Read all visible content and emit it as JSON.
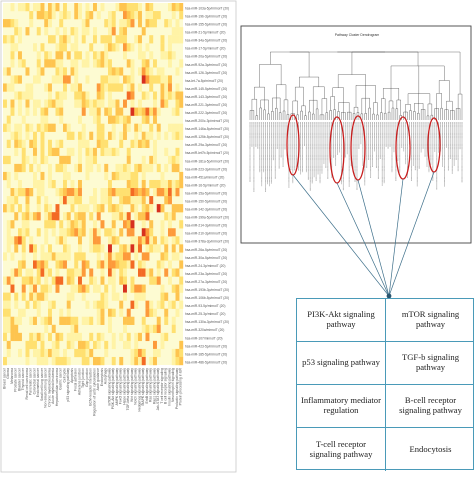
{
  "heatmap": {
    "row_labels": [
      "hsa-miR-103a-5p/mirnoiT (20)",
      "hsa-miR-19b-3p/mirnoiT (20)",
      "hsa-miR-155-5p/mirnoiT (20)",
      "hsa-miR-21-5p/mirnoiT (20)",
      "hsa-miR-34a-5p/mirnoiT (20)",
      "hsa-miR-17-5p/mirnoiT (20)",
      "hsa-miR-20a-5p/mirnoiT (20)",
      "hsa-miR-92a-3p/mirnoiT (20)",
      "hsa-miR-126-3p/mirnoiT (20)",
      "hsa-let-7a-5p/mirnoiT (20)",
      "hsa-miR-145-5p/mirnoiT (20)",
      "hsa-miR-143-3p/mirnoiT (20)",
      "hsa-miR-221-3p/mirnoiT (20)",
      "hsa-miR-222-3p/mirnoiT (20)",
      "hsa-miR-200c-3p/mirnoiT (20)",
      "hsa-miR-146a-5p/mirnoiT (20)",
      "hsa-miR-125b-5p/mirnoiT (20)",
      "hsa-miR-29a-3p/mirnoiT (20)",
      "hsa-miR-let7b-5p/mirnoiT (20)",
      "hsa-miR-181a-5p/mirnoiT (20)",
      "hsa-miR-223-3p/mirnoiT (20)",
      "hsa-miR-451a/mirnoiT (20)",
      "hsa-miR-16-5p/mirnoiT (20)",
      "hsa-miR-15a-5p/mirnoiT (20)",
      "hsa-miR-150-5p/mirnoiT (20)",
      "hsa-miR-142-3p/mirnoiT (20)",
      "hsa-miR-199a-5p/mirnoiT (20)",
      "hsa-miR-214-3p/mirnoiT (20)",
      "hsa-miR-210-3p/mirnoiT (20)",
      "hsa-miR-378a-3p/mirnoiT (20)",
      "hsa-miR-26a-5p/mirnoiT (20)",
      "hsa-miR-30a-5p/mirnoiT (20)",
      "hsa-miR-24-3p/mirnoiT (20)",
      "hsa-miR-23a-3p/mirnoiT (20)",
      "hsa-miR-27a-3p/mirnoiT (20)",
      "hsa-miR-193b-3p/mirnoiT (20)",
      "hsa-miR-106b-5p/mirnoiT (20)",
      "hsa-miR-93-5p/mirnoiT (20)",
      "hsa-miR-25-3p/mirnoiT (20)",
      "hsa-miR-130a-3p/mirnoiT (20)",
      "hsa-miR-320a/mirnoiT (20)",
      "hsa-miR-107/mirnoiT (20)",
      "hsa-miR-423-5p/mirnoiT (20)",
      "hsa-miR-185-5p/mirnoiT (20)",
      "hsa-miR-486-5p/mirnoiT (20)"
    ],
    "column_labels": [
      "Breast cancer",
      "Glioma",
      "Melanoma",
      "Prostate cancer",
      "Bladder cancer",
      "Thyroid cancer",
      "Renal cell carcinoma",
      "Pancreatic cancer",
      "Colorectal cancer",
      "Endometrial cancer",
      "Small cell lung cancer",
      "Non-small cell lung cancer",
      "Chronic myeloid leukemia",
      "Acute myeloid leukemia",
      "Hepatocellular carcinoma",
      "Gastric cancer",
      "Cell cycle",
      "p53 signaling pathway",
      "Apoptosis",
      "Focal adhesion",
      "Adherens junction",
      "Tight junction",
      "Gap junction",
      "ECM-receptor interaction",
      "Regulation of actin cytoskeleton",
      "Axon guidance",
      "Endocytosis",
      "Autophagy",
      "mTOR signaling pathway",
      "PI3K-Akt signaling pathway",
      "AMPK signaling pathway",
      "FoxO signaling pathway",
      "Hippo signaling pathway",
      "TGF-beta signaling pathway",
      "Wnt signaling pathway",
      "Notch signaling pathway",
      "Hedgehog signaling pathway",
      "MAPK signaling pathway",
      "ErbB signaling pathway",
      "Ras signaling pathway",
      "Rap1 signaling pathway",
      "Jak-STAT signaling pathway",
      "T cell receptor signaling",
      "B cell receptor signaling",
      "Insulin signaling pathway",
      "Neurotrophin signaling",
      "Prolactin signaling pathway",
      "Protein processing in ER"
    ],
    "colors": {
      "low": "#fdfbd0",
      "high": "#d7301f"
    }
  },
  "dendrogram": {
    "title": "Pathway Cluster Dendrogram",
    "leaf_count": 110,
    "highlight_color": "#c81e1e"
  },
  "pathway_table": {
    "cells": [
      "PI3K-Akt signaling pathway",
      "mTOR signaling pathway",
      "p53 signaling pathway",
      "TGF-b signaling pathway",
      "Inflammatory mediator regulation",
      "B-cell receptor signaling pathway",
      "T-cell receptor signaling pathway",
      "Endocytosis"
    ],
    "border_color": "#4a9ab8"
  }
}
